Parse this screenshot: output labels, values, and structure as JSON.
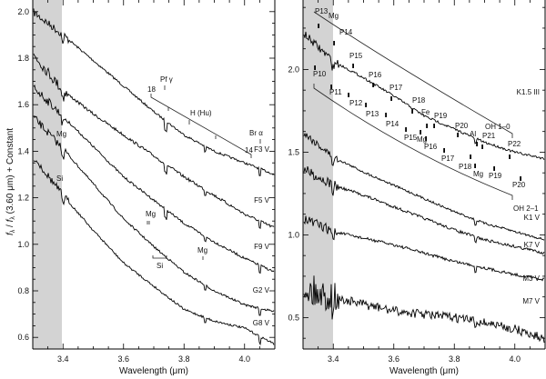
{
  "chart_data": [
    {
      "type": "line",
      "panel": "left",
      "title": "",
      "xlabel": "Wavelength (μm)",
      "ylabel": "f_λ / f_λ (3.60 μm) + Constant",
      "xlim": [
        3.3,
        4.1
      ],
      "ylim": [
        0.55,
        2.05
      ],
      "xticks": [
        3.4,
        3.6,
        3.8,
        4.0
      ],
      "xtick_labels": [
        "3.4",
        "3.6",
        "3.8",
        "4.0"
      ],
      "yticks": [
        0.6,
        0.8,
        1.0,
        1.2,
        1.4,
        1.6,
        1.8,
        2.0
      ],
      "ytick_labels": [
        "0.6",
        "0.8",
        "1.0",
        "1.2",
        "1.4",
        "1.6",
        "1.8",
        "2.0"
      ],
      "shaded_region": [
        3.3,
        3.4
      ],
      "grid": false,
      "x": [
        3.3,
        3.4,
        3.5,
        3.6,
        3.7,
        3.8,
        3.9,
        4.0,
        4.1
      ],
      "series": [
        {
          "name": "F3 V",
          "values": [
            2.0,
            1.9,
            1.79,
            1.68,
            1.57,
            1.47,
            1.4,
            1.35,
            1.3
          ]
        },
        {
          "name": "F5 V",
          "values": [
            1.82,
            1.66,
            1.56,
            1.47,
            1.38,
            1.29,
            1.21,
            1.13,
            1.07
          ]
        },
        {
          "name": "F9 V",
          "values": [
            1.68,
            1.55,
            1.42,
            1.29,
            1.19,
            1.09,
            1.01,
            0.94,
            0.88
          ]
        },
        {
          "name": "G2 V",
          "values": [
            1.55,
            1.41,
            1.26,
            1.11,
            0.99,
            0.88,
            0.8,
            0.74,
            0.71
          ]
        },
        {
          "name": "G8 V",
          "values": [
            1.38,
            1.21,
            1.06,
            0.92,
            0.82,
            0.72,
            0.67,
            0.64,
            0.57
          ]
        }
      ],
      "annotations": [
        {
          "text": "Pf γ",
          "x": 3.74
        },
        {
          "text": "18",
          "x": 3.69
        },
        {
          "text": "H (Hu)",
          "x": 3.83
        },
        {
          "text": "14",
          "x": 4.02
        },
        {
          "text": "Br α",
          "x": 4.05
        },
        {
          "text": "Mg",
          "x": 3.39
        },
        {
          "text": "Si",
          "x": 3.39
        },
        {
          "text": "Mg",
          "x": 3.71
        },
        {
          "text": "Si",
          "x": 3.74
        },
        {
          "text": "Mg",
          "x": 3.87
        }
      ]
    },
    {
      "type": "line",
      "panel": "right",
      "title": "",
      "xlabel": "Wavelength (μm)",
      "ylabel": "",
      "xlim": [
        3.3,
        4.1
      ],
      "ylim": [
        0.31,
        2.42
      ],
      "xticks": [
        3.4,
        3.6,
        3.8,
        4.0
      ],
      "xtick_labels": [
        "3.4",
        "3.6",
        "3.8",
        "4.0"
      ],
      "yticks": [
        0.5,
        1.0,
        1.5,
        2.0
      ],
      "ytick_labels": [
        "0.5",
        "1.0",
        "1.5",
        "2.0"
      ],
      "shaded_region": [
        3.3,
        3.4
      ],
      "grid": false,
      "x": [
        3.3,
        3.4,
        3.5,
        3.6,
        3.7,
        3.8,
        3.9,
        4.0,
        4.1
      ],
      "series": [
        {
          "name": "K1.5 III",
          "values": [
            2.22,
            2.05,
            1.95,
            1.84,
            1.72,
            1.64,
            1.56,
            1.5,
            1.46
          ]
        },
        {
          "name": "K1 V",
          "values": [
            1.62,
            1.47,
            1.38,
            1.3,
            1.22,
            1.14,
            1.07,
            1.02,
            0.97
          ]
        },
        {
          "name": "K7 V",
          "values": [
            1.4,
            1.3,
            1.24,
            1.17,
            1.1,
            1.03,
            0.97,
            0.93,
            0.89
          ]
        },
        {
          "name": "M3 V",
          "values": [
            1.1,
            1.02,
            0.98,
            0.94,
            0.89,
            0.84,
            0.8,
            0.76,
            0.73
          ]
        },
        {
          "name": "M7 V",
          "values": [
            0.68,
            0.62,
            0.58,
            0.54,
            0.52,
            0.5,
            0.47,
            0.43,
            0.37
          ]
        }
      ],
      "annotations": [
        {
          "text": "Mg",
          "x": 3.39
        },
        {
          "text": "OH 1–0",
          "x": 4.05
        },
        {
          "text": "OH 2–1",
          "x": 4.05
        },
        {
          "text": "P13",
          "x": 3.34
        },
        {
          "text": "P14",
          "x": 3.39
        },
        {
          "text": "P15",
          "x": 3.45
        },
        {
          "text": "P16",
          "x": 3.52
        },
        {
          "text": "P17",
          "x": 3.59
        },
        {
          "text": "P18",
          "x": 3.66
        },
        {
          "text": "Fe",
          "x": 3.7
        },
        {
          "text": "P19",
          "x": 3.73
        },
        {
          "text": "P20",
          "x": 3.81
        },
        {
          "text": "Al",
          "x": 3.86
        },
        {
          "text": "P21",
          "x": 3.89
        },
        {
          "text": "P22",
          "x": 3.98
        },
        {
          "text": "P10",
          "x": 3.34
        },
        {
          "text": "P11",
          "x": 3.39
        },
        {
          "text": "P12",
          "x": 3.45
        },
        {
          "text": "P13",
          "x": 3.51
        },
        {
          "text": "P14",
          "x": 3.57
        },
        {
          "text": "P15",
          "x": 3.64
        },
        {
          "text": "Mg",
          "x": 3.67
        },
        {
          "text": "P16",
          "x": 3.7
        },
        {
          "text": "P17",
          "x": 3.76
        },
        {
          "text": "P18",
          "x": 3.84
        },
        {
          "text": "Mg",
          "x": 3.86
        },
        {
          "text": "P19",
          "x": 3.91
        },
        {
          "text": "P20",
          "x": 4.0
        }
      ]
    }
  ],
  "figure": {
    "left": {
      "ylabel_main": "f",
      "ylabel_sub": "λ",
      "ylabel_rest": " (3.60 μm) + Constant",
      "xlabel": "Wavelength (μm)",
      "series_labels": [
        "F3 V",
        "F5 V",
        "F9 V",
        "G2 V",
        "G8 V"
      ],
      "hu_label": "H (Hu)",
      "pf_label": "Pf  γ",
      "br_label": "Br α",
      "n18": "18",
      "n14": "14",
      "mg_label": "Mg",
      "si_label": "Si",
      "mg2_label": "Mg",
      "si2_label": "Si",
      "mg3_label": "Mg"
    },
    "right": {
      "xlabel": "Wavelength (μm)",
      "series_labels": [
        "K1.5 III",
        "K1 V",
        "K7 V",
        "M3 V",
        "M7 V"
      ],
      "oh10": "OH 1–0",
      "oh21": "OH 2–1",
      "mg_top": "Mg",
      "upper_lines": [
        "P13",
        "P14",
        "P15",
        "P16",
        "P17",
        "P18",
        "Fe",
        "P19",
        "P20",
        "Al",
        "P21",
        "P22"
      ],
      "lower_lines": [
        "P10",
        "P11",
        "P12",
        "P13",
        "P14",
        "P15",
        "Mg",
        "P16",
        "P17",
        "P18",
        "Mg",
        "P19",
        "P20"
      ]
    }
  }
}
